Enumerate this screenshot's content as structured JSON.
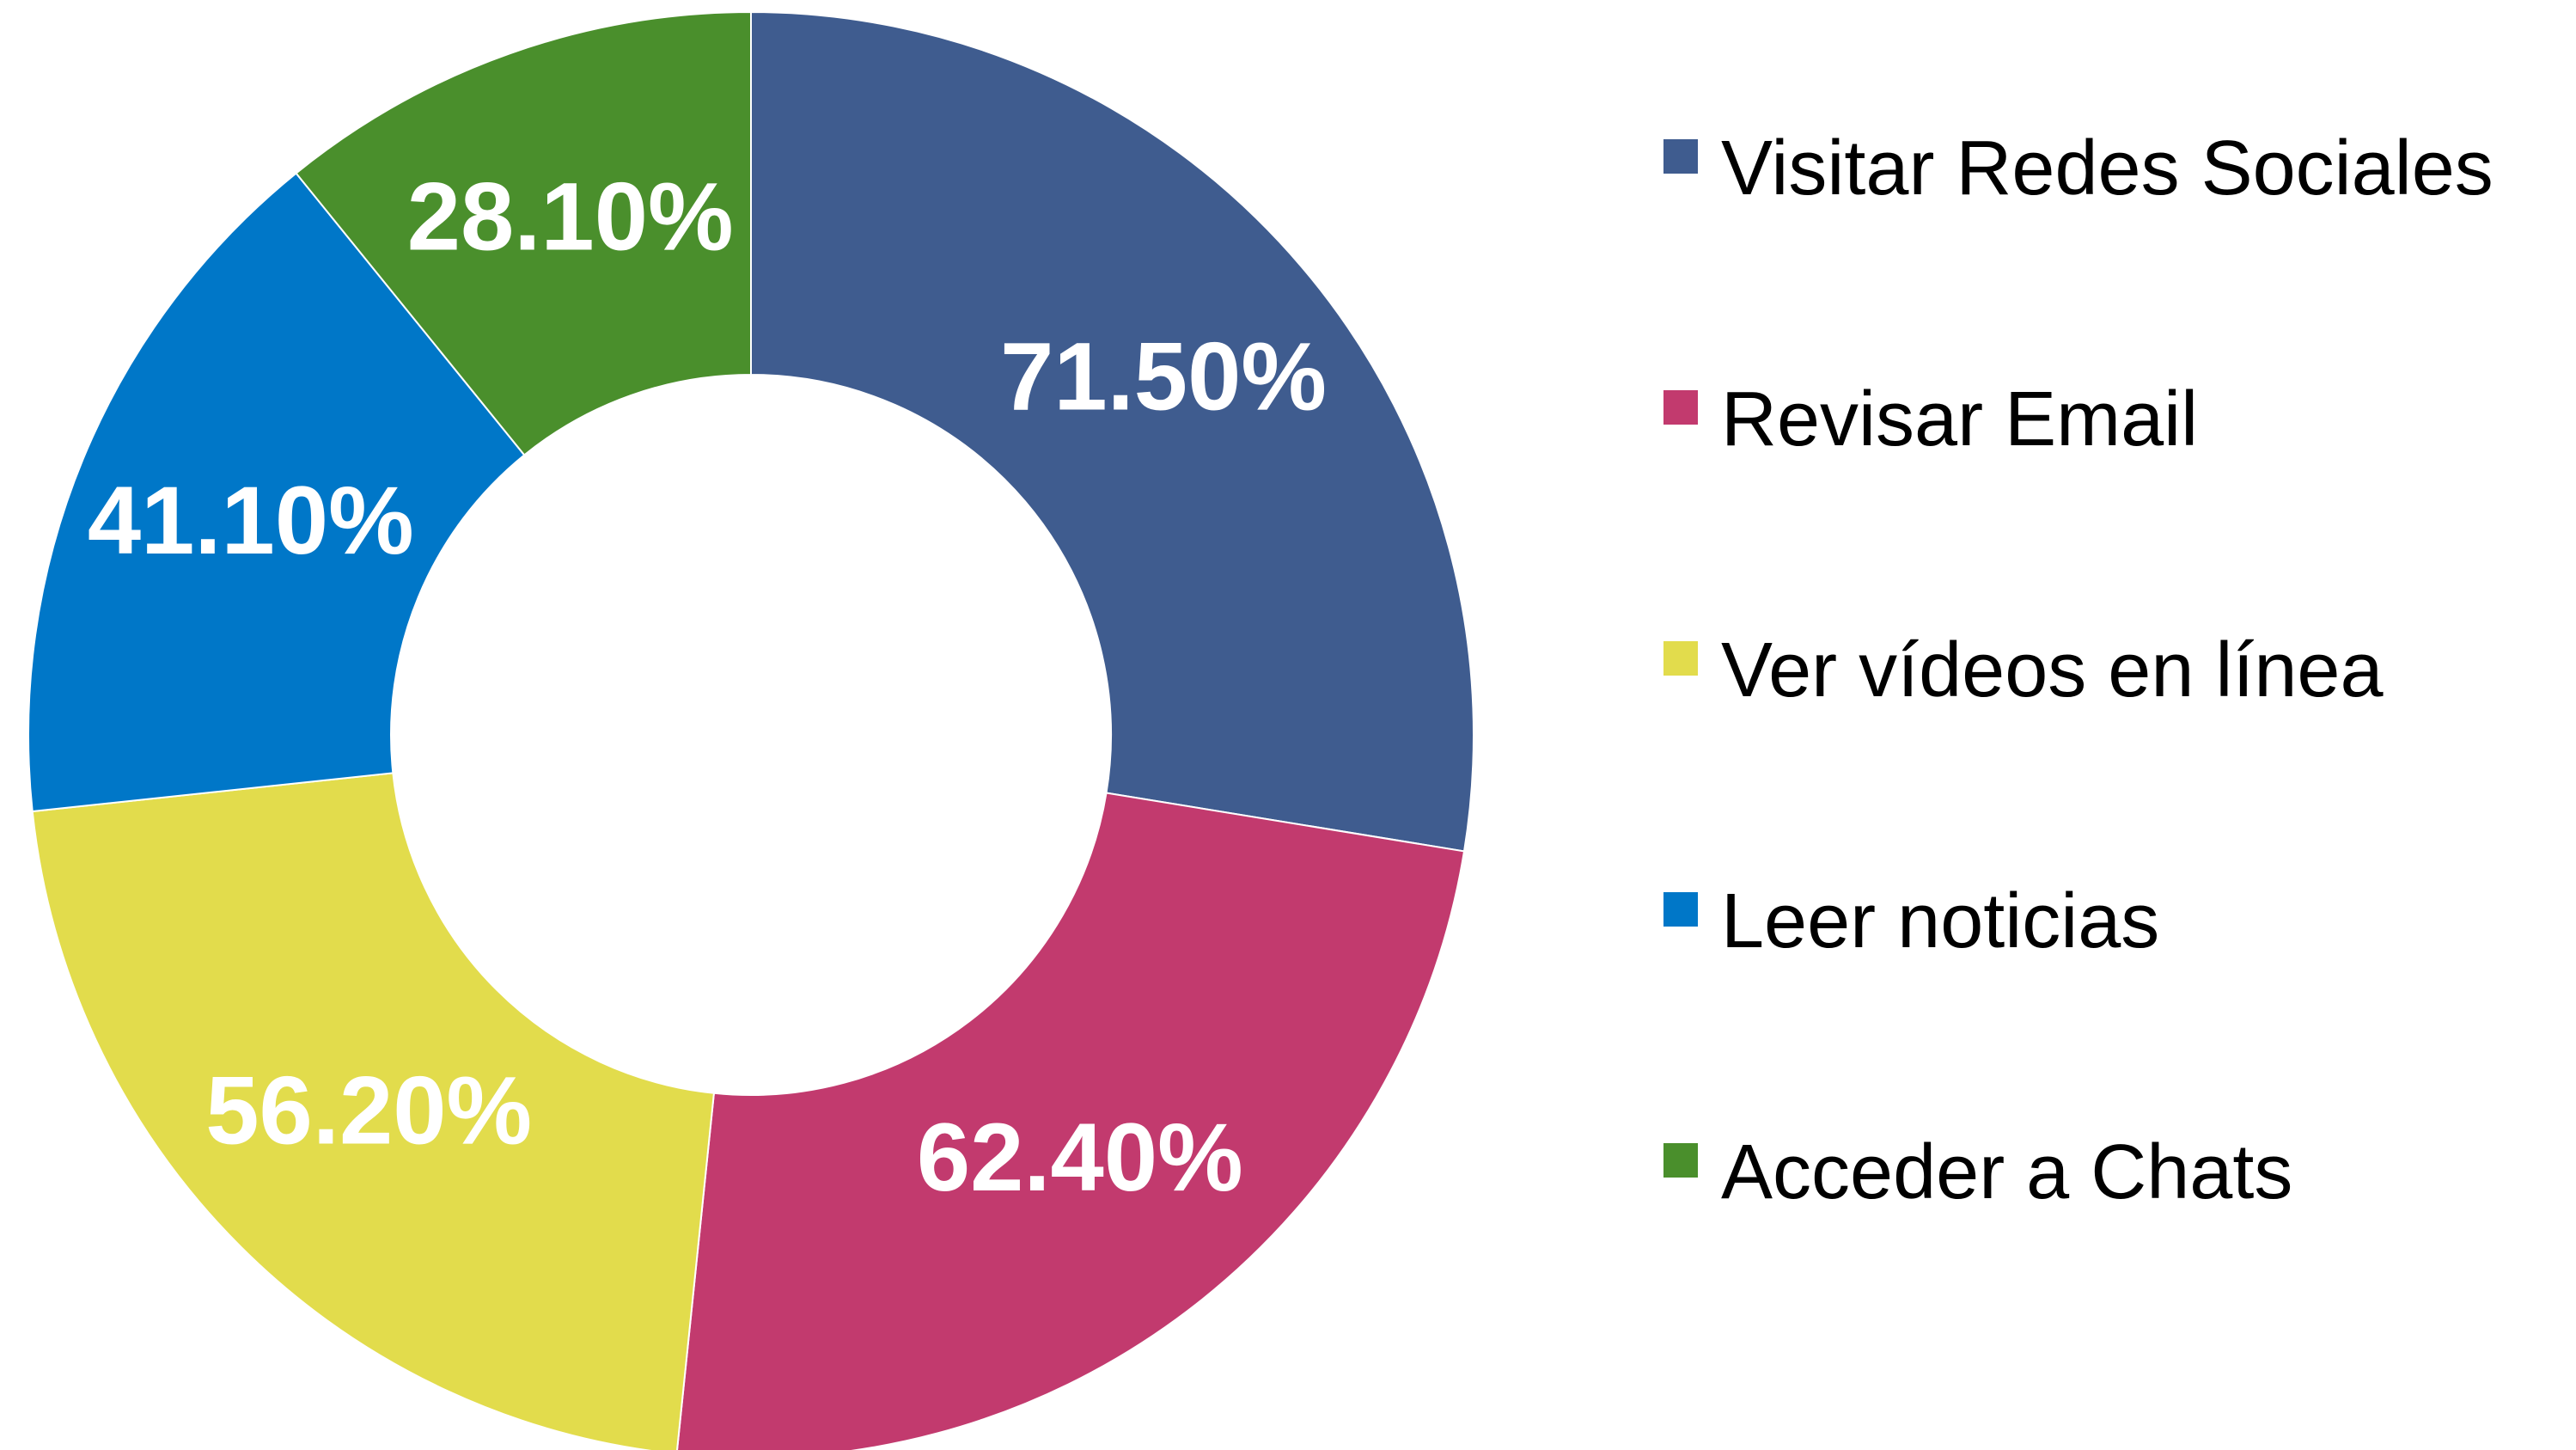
{
  "chart_data": {
    "type": "donut",
    "categories": [
      "Visitar Redes Sociales",
      "Revisar Email",
      "Ver vídeos en línea",
      "Leer noticias",
      "Acceder a Chats"
    ],
    "values": [
      71.5,
      62.4,
      56.2,
      41.1,
      28.1
    ],
    "value_labels": [
      "71.50%",
      "62.40%",
      "56.20%",
      "41.10%",
      "28.10%"
    ],
    "colors": [
      "#3f5c8f",
      "#c23a6e",
      "#e2dc4c",
      "#0077c8",
      "#4a8f2c"
    ],
    "legend": "right"
  }
}
